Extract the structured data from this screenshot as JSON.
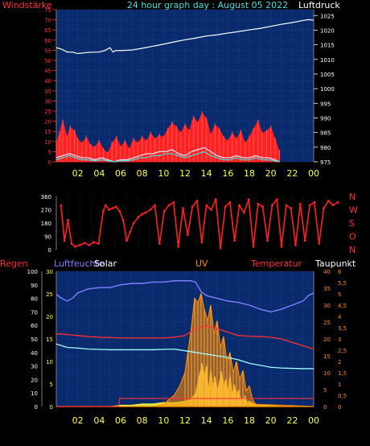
{
  "colors": {
    "background": "#000000",
    "plot_bg": "#0a2a6e",
    "grid": "#2f58a8",
    "windstaerke": "#ff2020",
    "luftdruck": "#ffffff",
    "gust": "#e8e8ff",
    "wind_avg": "#40e0e0",
    "direction": "#ff2020",
    "time_axis": "#ffff40",
    "left_axis": "#ff3030",
    "humidity": "#8080ff",
    "temperature": "#ff3030",
    "dewpoint": "#a0ffff",
    "solar": "#ffff40",
    "uv": "#ff8c00",
    "rain": "#ff3030"
  },
  "chart_data": [
    {
      "type": "line",
      "title": "24 hour graph day : August 05 2022",
      "left_label": "Windstärke",
      "right_label": "Luftdruck",
      "left_ticks": [
        "0",
        "5",
        "10",
        "15",
        "20",
        "25",
        "30",
        "35",
        "40",
        "45",
        "50",
        "55",
        "60",
        "65",
        "70",
        "75"
      ],
      "right_ticks": [
        "975",
        "980",
        "985",
        "990",
        "995",
        "1000",
        "1005",
        "1010",
        "1015",
        "1020",
        "1025"
      ],
      "x_ticks": [
        "02",
        "04",
        "06",
        "08",
        "10",
        "12",
        "14",
        "16",
        "18",
        "20",
        "22",
        "00"
      ],
      "ylim_left": [
        0,
        75
      ],
      "ylim_right": [
        975,
        1027
      ],
      "grid": true,
      "series": [
        {
          "name": "Luftdruck",
          "axis": "right",
          "x": [
            0,
            0.5,
            1,
            1.5,
            2,
            3,
            4,
            4.5,
            5,
            5.3,
            5.5,
            6,
            7,
            8,
            9,
            10,
            11,
            12,
            13,
            14,
            15,
            16,
            17,
            18,
            19,
            20,
            21,
            22,
            23,
            23.5,
            24
          ],
          "y": [
            1014,
            1013.5,
            1012.5,
            1012.5,
            1012,
            1012.4,
            1012.5,
            1013,
            1014,
            1012.5,
            1013,
            1013,
            1013.2,
            1013.8,
            1014.5,
            1015.2,
            1016,
            1016.7,
            1017.3,
            1018,
            1018.4,
            1019,
            1019.5,
            1020.1,
            1020.6,
            1021.3,
            1022,
            1022.6,
            1023.3,
            1023.6,
            1023.4
          ]
        },
        {
          "name": "Windstärke",
          "axis": "left",
          "x": [
            0,
            0.3,
            0.6,
            1,
            1.3,
            1.7,
            2,
            2.4,
            2.8,
            3.2,
            3.6,
            4,
            4.4,
            4.8,
            5.2,
            5.6,
            6,
            6.4,
            6.8,
            7.2,
            7.6,
            8,
            8.4,
            8.8,
            9.2,
            9.6,
            10,
            10.4,
            10.8,
            11.2,
            11.6,
            12,
            12.4,
            12.8,
            13.2,
            13.6,
            14,
            14.4,
            14.8,
            15.2,
            15.6,
            16,
            16.4,
            16.8,
            17.2,
            17.6,
            18,
            18.4,
            18.8,
            19.2,
            19.6,
            20,
            20.4,
            20.8
          ],
          "y": [
            9,
            14,
            20,
            12,
            17,
            15,
            11,
            9,
            12,
            8,
            7,
            10,
            6,
            4,
            9,
            12,
            7,
            10,
            6,
            11,
            9,
            12,
            10,
            14,
            11,
            13,
            12,
            16,
            19,
            17,
            14,
            18,
            15,
            22,
            19,
            24,
            21,
            13,
            18,
            16,
            12,
            10,
            14,
            11,
            15,
            9,
            12,
            16,
            20,
            14,
            15,
            17,
            11,
            5
          ]
        },
        {
          "name": "Böe",
          "axis": "left",
          "x": [
            0,
            0.6,
            1.2,
            1.8,
            2.4,
            3,
            3.6,
            4.2,
            4.8,
            5.4,
            6,
            6.6,
            7.2,
            7.8,
            8.4,
            9,
            9.6,
            10.2,
            10.8,
            11.4,
            12,
            12.6,
            13.2,
            13.8,
            14.4,
            15,
            15.6,
            16.2,
            16.8,
            17.4,
            18,
            18.6,
            19.2,
            19.8,
            20.4,
            20.8
          ],
          "y": [
            2,
            3,
            4,
            3,
            2,
            2,
            1,
            2,
            1,
            0,
            1,
            1,
            2,
            3,
            4,
            4,
            5,
            5,
            6,
            4,
            3,
            5,
            6,
            7,
            5,
            3,
            2,
            2,
            3,
            2,
            2,
            3,
            2,
            2,
            1,
            0
          ]
        },
        {
          "name": "Wind",
          "axis": "left",
          "x": [
            0,
            0.6,
            1.2,
            1.8,
            2.4,
            3,
            3.6,
            4.2,
            4.8,
            5.4,
            6,
            6.6,
            7.2,
            7.8,
            8.4,
            9,
            9.6,
            10.2,
            10.8,
            11.4,
            12,
            12.6,
            13.2,
            13.8,
            14.4,
            15,
            15.6,
            16.2,
            16.8,
            17.4,
            18,
            18.6,
            19.2,
            19.8,
            20.4,
            20.8
          ],
          "y": [
            1,
            2,
            3,
            2,
            1,
            1,
            0.5,
            1,
            0.5,
            0,
            0.5,
            0.5,
            1,
            2,
            2,
            3,
            3,
            4,
            4,
            3,
            2,
            3,
            4,
            5,
            3,
            2,
            1,
            1,
            2,
            1,
            1,
            2,
            1,
            1,
            0.5,
            0
          ]
        }
      ]
    },
    {
      "type": "scatter",
      "right_labels": [
        "N",
        "W",
        "S",
        "O",
        "N"
      ],
      "left_ticks": [
        "0",
        "90",
        "180",
        "270",
        "360"
      ],
      "x_ticks": [
        "02",
        "04",
        "06",
        "08",
        "10",
        "12",
        "14",
        "16",
        "18",
        "20",
        "22",
        "00"
      ],
      "ylim": [
        0,
        360
      ],
      "series": [
        {
          "name": "Windrichtung",
          "x": [
            0.4,
            0.7,
            1.0,
            1.3,
            1.6,
            2.0,
            2.4,
            2.8,
            3.2,
            3.6,
            4.0,
            4.2,
            4.5,
            4.8,
            5.1,
            5.4,
            5.7,
            6.0,
            6.3,
            6.6,
            7.0,
            7.3,
            7.6,
            8.0,
            8.4,
            8.8,
            9.2,
            9.6,
            10.0,
            10.4,
            10.8,
            11.2,
            11.6,
            12.0,
            12.4,
            12.8,
            13.2,
            13.6,
            14.0,
            14.4,
            14.8,
            15.2,
            15.6,
            16.0,
            16.4,
            16.8,
            17.2,
            17.6,
            18.0,
            18.4,
            18.8,
            19.2,
            19.6,
            20.0,
            20.4,
            20.8,
            21.2,
            21.6,
            22.0,
            22.4,
            22.8,
            23.2,
            23.6,
            24.0
          ],
          "y": [
            300,
            60,
            200,
            40,
            20,
            30,
            45,
            30,
            50,
            40,
            260,
            300,
            270,
            280,
            290,
            260,
            200,
            60,
            120,
            180,
            220,
            240,
            250,
            270,
            300,
            40,
            260,
            300,
            320,
            20,
            280,
            100,
            290,
            330,
            50,
            300,
            270,
            340,
            10,
            290,
            320,
            60,
            300,
            250,
            340,
            20,
            310,
            290,
            60,
            300,
            340,
            20,
            300,
            280,
            30,
            310,
            60,
            300,
            320,
            40,
            280,
            330,
            300,
            320
          ]
        }
      ]
    },
    {
      "type": "line",
      "labels": {
        "regen": "Regen",
        "luftfeuchte": "Luftfeuchte",
        "solar": "Solar",
        "uv": "UV",
        "temperatur": "Temperatur",
        "taupunkt": "Taupunkt"
      },
      "regen_ticks": [
        "0",
        "5",
        "10",
        "15",
        "20",
        "25",
        "30",
        "35",
        "40",
        "45",
        "50",
        "55",
        "60",
        "65",
        "70",
        "75",
        "80",
        "85",
        "90",
        "95",
        "100"
      ],
      "humid_ticks": [
        "0",
        "5",
        "10",
        "15",
        "20",
        "25",
        "30"
      ],
      "temp_ticks": [
        "0",
        "5",
        "10",
        "15",
        "20",
        "25",
        "30",
        "35",
        "40"
      ],
      "uv_ticks": [
        "0",
        "0,5",
        "1",
        "1,5",
        "2",
        "2,5",
        "3",
        "3,5",
        "4",
        "4,5",
        "5",
        "5,5",
        "6"
      ],
      "x_ticks": [
        "02",
        "04",
        "06",
        "08",
        "10",
        "12",
        "14",
        "16",
        "18",
        "20",
        "22",
        "00"
      ],
      "grid": true,
      "series": [
        {
          "name": "Luftfeuchte",
          "axis": "regen",
          "x": [
            0,
            0.5,
            1,
            1.5,
            2,
            3,
            4,
            5,
            6,
            7,
            8,
            9,
            10,
            11,
            12,
            12.5,
            13,
            13.5,
            14,
            15,
            16,
            17,
            18,
            19,
            20,
            21,
            22,
            23,
            23.5,
            24
          ],
          "y": [
            83,
            80,
            78,
            80,
            84,
            87,
            88,
            88,
            90,
            91,
            91,
            92,
            92,
            93,
            93,
            93,
            92,
            85,
            82,
            80,
            78,
            77,
            75,
            72,
            70,
            72,
            75,
            78,
            82,
            84
          ]
        },
        {
          "name": "Temperatur",
          "axis": "temp",
          "x": [
            0,
            1,
            2,
            3,
            4,
            5,
            6,
            7,
            8,
            9,
            10,
            11,
            12,
            13,
            14,
            15,
            16,
            17,
            18,
            19,
            20,
            21,
            22,
            23,
            24
          ],
          "y": [
            21.5,
            21.3,
            21,
            20.7,
            20.5,
            20.4,
            20.3,
            20.3,
            20.3,
            20.3,
            20.3,
            20.5,
            21,
            23,
            24,
            23,
            22,
            21,
            20.8,
            20.7,
            20.5,
            20,
            19,
            18,
            17
          ]
        },
        {
          "name": "Taupunkt",
          "axis": "temp",
          "x": [
            0,
            1,
            2,
            3,
            4,
            5,
            6,
            7,
            8,
            9,
            10,
            11,
            12,
            13,
            14,
            15,
            16,
            17,
            18,
            19,
            20,
            21,
            22,
            23,
            24
          ],
          "y": [
            18.5,
            17.5,
            17.3,
            17,
            16.9,
            16.8,
            16.8,
            16.8,
            16.8,
            16.8,
            16.9,
            17,
            16.5,
            16,
            15.5,
            15,
            14.5,
            13.8,
            12.8,
            12.2,
            11.6,
            11.4,
            11.3,
            11.2,
            11.2
          ]
        },
        {
          "name": "Solar",
          "axis": "regen",
          "x": [
            0,
            5,
            6,
            7,
            8,
            9,
            10,
            11,
            12,
            12.5,
            13,
            13.2,
            13.4,
            13.6,
            13.8,
            14,
            14.2,
            14.4,
            14.6,
            14.8,
            15,
            15.2,
            15.4,
            15.6,
            15.8,
            16,
            16.2,
            16.4,
            16.6,
            16.8,
            17,
            17.2,
            17.4,
            17.6,
            17.8,
            18,
            18.4,
            19,
            20,
            21,
            24
          ],
          "y": [
            0,
            0,
            1,
            1,
            2,
            2,
            3,
            3,
            4,
            5,
            10,
            18,
            25,
            32,
            20,
            30,
            12,
            28,
            15,
            22,
            10,
            18,
            26,
            14,
            20,
            11,
            24,
            9,
            16,
            8,
            12,
            6,
            5,
            8,
            3,
            4,
            2,
            1,
            1,
            0,
            0
          ]
        },
        {
          "name": "UV",
          "axis": "uv",
          "x": [
            0,
            9,
            10,
            10.5,
            11,
            11.5,
            12,
            12.3,
            12.6,
            12.9,
            13.2,
            13.5,
            13.8,
            14.1,
            14.4,
            14.7,
            15,
            15.3,
            15.6,
            15.9,
            16.2,
            16.5,
            16.8,
            17.1,
            17.4,
            17.7,
            18,
            18.3,
            18.6,
            24
          ],
          "y": [
            0,
            0,
            0.1,
            0.3,
            0.5,
            0.9,
            1.5,
            2.5,
            3.5,
            4.8,
            4.6,
            5.0,
            4.3,
            3.8,
            4.5,
            3.2,
            3.8,
            2.6,
            3.1,
            2.0,
            2.4,
            1.5,
            2.0,
            1.2,
            1.6,
            0.7,
            0.9,
            0.3,
            0.1,
            0
          ]
        },
        {
          "name": "Regen",
          "axis": "regen",
          "x": [
            0,
            5.8,
            5.9,
            24
          ],
          "y": [
            0,
            0,
            6,
            6
          ]
        }
      ]
    }
  ]
}
